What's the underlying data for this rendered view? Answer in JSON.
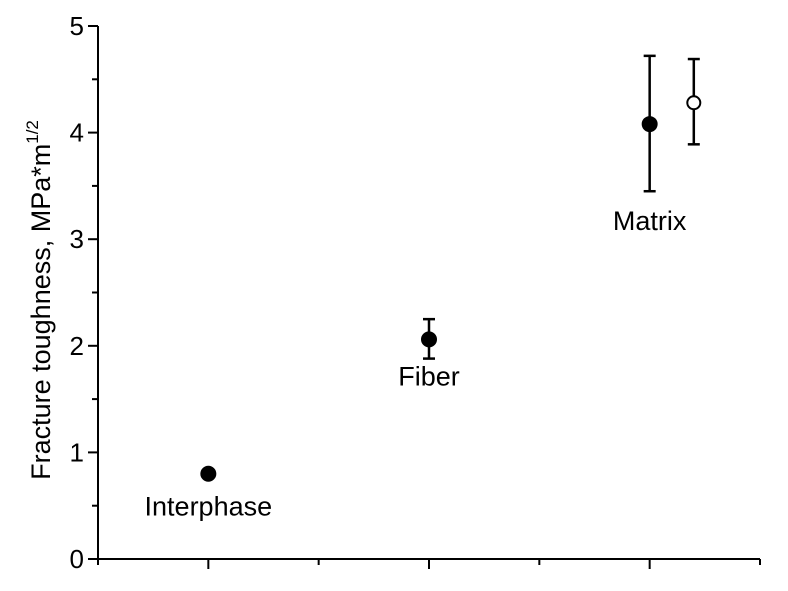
{
  "chart_data": {
    "type": "scatter",
    "ylabel": "Fracture toughness, MPa*m",
    "ylabel_superscript": "1/2",
    "ylim": [
      0,
      5
    ],
    "y_ticks": [
      "0",
      "1",
      "2",
      "3",
      "4",
      "5"
    ],
    "x_ticks": [
      1,
      2,
      3
    ],
    "xlim": [
      0.5,
      3.5
    ],
    "grid": false,
    "points": [
      {
        "label": "Interphase",
        "x": 1,
        "y": 0.8,
        "err_low": null,
        "err_high": null,
        "filled": true
      },
      {
        "label": "Fiber",
        "x": 2,
        "y": 2.06,
        "err_low": 1.88,
        "err_high": 2.25,
        "filled": true
      },
      {
        "label": "Matrix",
        "x": 3,
        "y": 4.08,
        "err_low": 3.45,
        "err_high": 4.72,
        "filled": true
      },
      {
        "label": "",
        "x": 3.2,
        "y": 4.28,
        "err_low": 3.89,
        "err_high": 4.69,
        "filled": false
      }
    ],
    "annotations": [
      {
        "text": "Interphase",
        "x": 1,
        "y": 0.5
      },
      {
        "text": "Fiber",
        "x": 2,
        "y": 1.72
      },
      {
        "text": "Matrix",
        "x": 3,
        "y": 3.18
      }
    ]
  }
}
